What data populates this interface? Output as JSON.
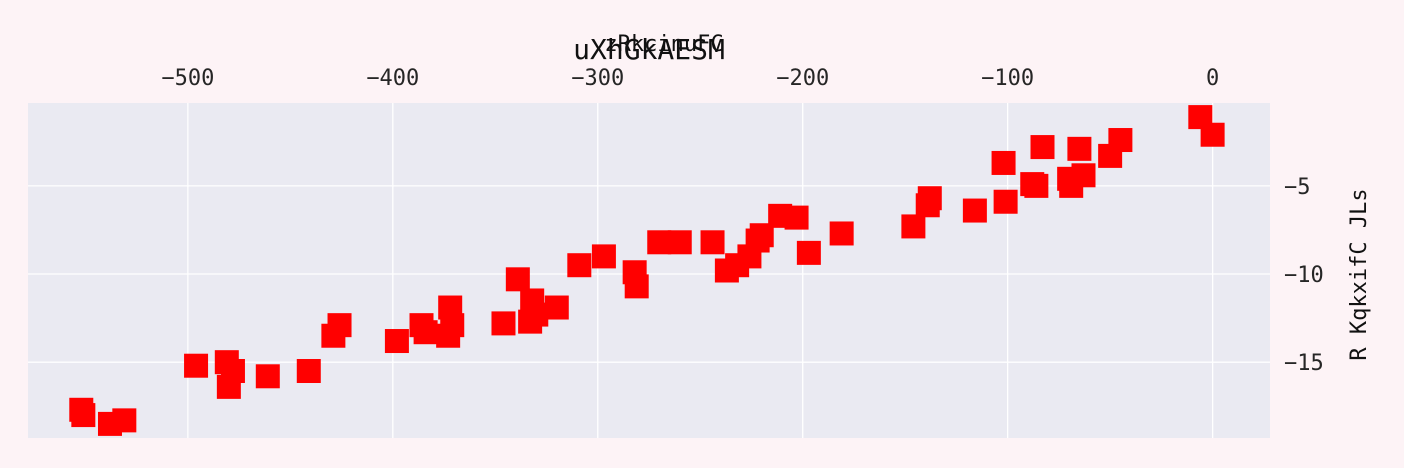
{
  "chart_data": {
    "type": "scatter",
    "title": "uXhGkAESM",
    "xlabel": "zRkcinuFC",
    "ylabel": "R  KqkxifC JLs",
    "xlim": [
      -578,
      28
    ],
    "ylim": [
      -19.3,
      -0.3
    ],
    "x_axis_position": "top",
    "y_axis_position": "right",
    "xticks": [
      -500,
      -400,
      -300,
      -200,
      -100,
      0
    ],
    "yticks": [
      -5,
      -10,
      -15
    ],
    "grid": true,
    "marker": "square",
    "colors": {
      "background": "#fdf3f6",
      "plot_area": "#eaeaf2",
      "grid": "#ffffff",
      "marker": "#ff0000"
    },
    "points": [
      {
        "x": -552,
        "y": -17.7
      },
      {
        "x": -551,
        "y": -18.0
      },
      {
        "x": -538,
        "y": -18.5
      },
      {
        "x": -531,
        "y": -18.3
      },
      {
        "x": -496,
        "y": -15.2
      },
      {
        "x": -481,
        "y": -15.0
      },
      {
        "x": -480,
        "y": -16.4
      },
      {
        "x": -478,
        "y": -15.5
      },
      {
        "x": -461,
        "y": -15.8
      },
      {
        "x": -441,
        "y": -15.5
      },
      {
        "x": -429,
        "y": -13.5
      },
      {
        "x": -426,
        "y": -12.9
      },
      {
        "x": -398,
        "y": -13.8
      },
      {
        "x": -386,
        "y": -12.9
      },
      {
        "x": -384,
        "y": -13.3
      },
      {
        "x": -373,
        "y": -13.5
      },
      {
        "x": -372,
        "y": -11.9
      },
      {
        "x": -371,
        "y": -12.9
      },
      {
        "x": -346,
        "y": -12.8
      },
      {
        "x": -339,
        "y": -10.3
      },
      {
        "x": -333,
        "y": -12.7
      },
      {
        "x": -332,
        "y": -11.5
      },
      {
        "x": -330,
        "y": -12.3
      },
      {
        "x": -320,
        "y": -11.9
      },
      {
        "x": -309,
        "y": -9.5
      },
      {
        "x": -297,
        "y": -9.0
      },
      {
        "x": -282,
        "y": -9.9
      },
      {
        "x": -281,
        "y": -10.7
      },
      {
        "x": -270,
        "y": -8.2
      },
      {
        "x": -260,
        "y": -8.2
      },
      {
        "x": -244,
        "y": -8.2
      },
      {
        "x": -237,
        "y": -9.8
      },
      {
        "x": -232,
        "y": -9.5
      },
      {
        "x": -226,
        "y": -9.0
      },
      {
        "x": -222,
        "y": -8.1
      },
      {
        "x": -220,
        "y": -7.8
      },
      {
        "x": -211,
        "y": -6.7
      },
      {
        "x": -203,
        "y": -6.8
      },
      {
        "x": -197,
        "y": -8.8
      },
      {
        "x": -181,
        "y": -7.7
      },
      {
        "x": -146,
        "y": -7.3
      },
      {
        "x": -139,
        "y": -6.1
      },
      {
        "x": -138,
        "y": -5.7
      },
      {
        "x": -116,
        "y": -6.4
      },
      {
        "x": -102,
        "y": -3.7
      },
      {
        "x": -101,
        "y": -5.9
      },
      {
        "x": -88,
        "y": -4.9
      },
      {
        "x": -86,
        "y": -5.0
      },
      {
        "x": -83,
        "y": -2.8
      },
      {
        "x": -70,
        "y": -4.6
      },
      {
        "x": -69,
        "y": -5.0
      },
      {
        "x": -65,
        "y": -2.9
      },
      {
        "x": -63,
        "y": -4.4
      },
      {
        "x": -50,
        "y": -3.3
      },
      {
        "x": -45,
        "y": -2.4
      },
      {
        "x": -6,
        "y": -1.1
      },
      {
        "x": 0,
        "y": -2.1
      }
    ]
  }
}
